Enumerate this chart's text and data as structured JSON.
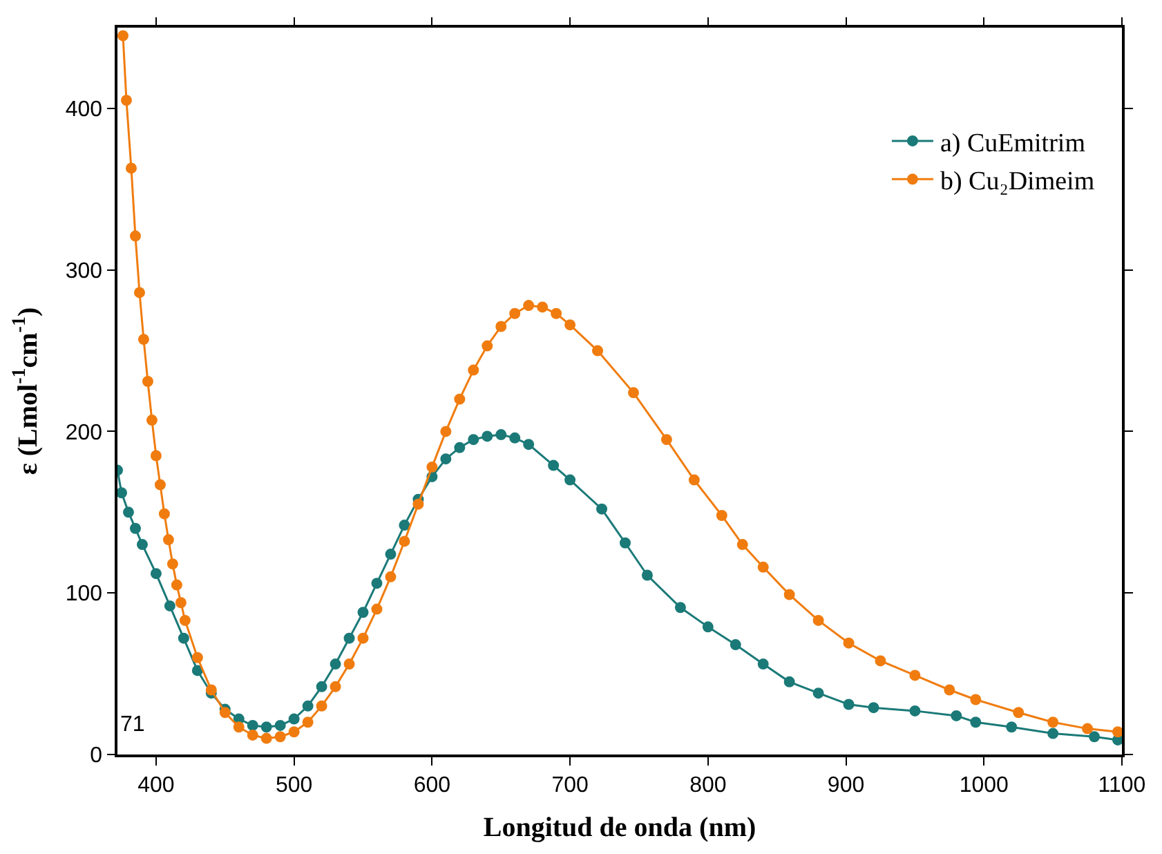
{
  "chart_data": {
    "type": "line",
    "xlabel": "Longitud de onda (nm)",
    "ylabel": "ε (Lmol$^{-1}$cm$^{-1}$)",
    "xlim": [
      372,
      1100
    ],
    "xticks": [
      400,
      500,
      600,
      700,
      800,
      900,
      1000,
      1100
    ],
    "ylim": [
      0,
      450
    ],
    "yticks": [
      0,
      100,
      200,
      300,
      400
    ],
    "legend": "top right",
    "line_style": "solid",
    "annotations": [
      "71"
    ],
    "series": [
      {
        "name": "a) CuEmitrim",
        "color": "#1b7a78",
        "marker": "circle",
        "x": [
          372,
          375,
          380,
          385,
          390,
          400,
          410,
          420,
          430,
          440,
          450,
          460,
          470,
          480,
          490,
          500,
          510,
          520,
          530,
          540,
          550,
          560,
          570,
          580,
          590,
          600,
          610,
          620,
          630,
          640,
          650,
          660,
          670,
          688,
          700,
          723,
          740,
          756,
          780,
          800,
          820,
          840,
          859,
          880,
          902,
          920,
          950,
          980,
          994,
          1020,
          1050,
          1080,
          1097
        ],
        "values": [
          176,
          162,
          150,
          140,
          130,
          112,
          92,
          72,
          52,
          38,
          28,
          22,
          18,
          17,
          18,
          22,
          30,
          42,
          56,
          72,
          88,
          106,
          124,
          142,
          158,
          172,
          183,
          190,
          195,
          197,
          198,
          196,
          192,
          179,
          170,
          152,
          131,
          111,
          91,
          79,
          68,
          56,
          45,
          38,
          31,
          29,
          27,
          24,
          20,
          17,
          13,
          11,
          9
        ]
      },
      {
        "name": "b) Cu₂Dimeim",
        "color": "#f07c0f",
        "marker": "circle",
        "x": [
          376,
          378.5,
          382,
          385,
          388,
          391,
          394,
          397,
          400,
          403,
          406,
          409,
          412,
          415,
          418,
          421,
          430,
          440,
          450,
          460,
          470,
          480,
          490,
          500,
          510,
          520,
          530,
          540,
          550,
          560,
          570,
          580,
          590,
          600,
          610,
          620,
          630,
          640,
          650,
          660,
          670,
          680,
          690,
          700,
          720,
          746,
          770,
          790,
          810,
          825,
          840,
          859,
          880,
          902,
          925,
          950,
          975,
          994,
          1025,
          1050,
          1075,
          1097
        ],
        "values": [
          445,
          405,
          363,
          321,
          286,
          257,
          231,
          207,
          185,
          167,
          149,
          133,
          118,
          105,
          94,
          83,
          60,
          40,
          26,
          17,
          12,
          10,
          11,
          14,
          20,
          30,
          42,
          56,
          72,
          90,
          110,
          132,
          155,
          178,
          200,
          220,
          238,
          253,
          265,
          273,
          278,
          277,
          273,
          266,
          250,
          224,
          195,
          170,
          148,
          130,
          116,
          99,
          83,
          69,
          58,
          49,
          40,
          34,
          26,
          20,
          16,
          14
        ]
      }
    ]
  }
}
